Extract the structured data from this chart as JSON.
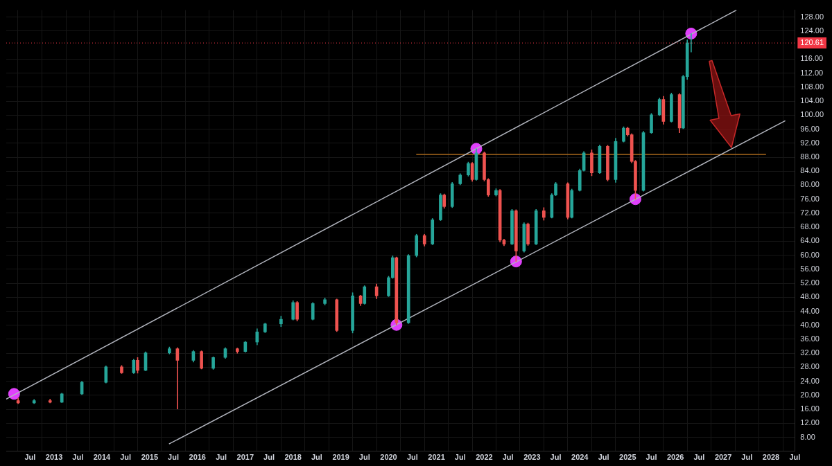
{
  "chart_data": {
    "type": "candlestick",
    "x": [
      "2012-04",
      "2012-08",
      "2012-12",
      "2013-03",
      "2013-08",
      "2014-02",
      "2014-06",
      "2014-09",
      "2014-10",
      "2014-12",
      "2015-06",
      "2015-08",
      "2015-12",
      "2016-02",
      "2016-05",
      "2016-08",
      "2016-11",
      "2017-01",
      "2017-04",
      "2017-06",
      "2017-10",
      "2018-01",
      "2018-02",
      "2018-06",
      "2018-09",
      "2018-12",
      "2019-04",
      "2019-06",
      "2019-07",
      "2019-10",
      "2020-01",
      "2020-02",
      "2020-03",
      "2020-06",
      "2020-08",
      "2020-10",
      "2020-12",
      "2021-02",
      "2021-03",
      "2021-05",
      "2021-07",
      "2021-09",
      "2021-10",
      "2021-11",
      "2022-01",
      "2022-02",
      "2022-04",
      "2022-05",
      "2022-06",
      "2022-08",
      "2022-09",
      "2022-11",
      "2022-12",
      "2023-02",
      "2023-04",
      "2023-06",
      "2023-07",
      "2023-10",
      "2023-11",
      "2024-01",
      "2024-02",
      "2024-04",
      "2024-06",
      "2024-08",
      "2024-10",
      "2024-12",
      "2025-01",
      "2025-02",
      "2025-03",
      "2025-05",
      "2025-07",
      "2025-09",
      "2025-10",
      "2025-12",
      "2026-02",
      "2026-03",
      "2026-04",
      "2026-05"
    ],
    "ohlc": [
      [
        18.5,
        19.2,
        17.6,
        17.8
      ],
      [
        17.8,
        18.8,
        17.6,
        18.5
      ],
      [
        18.5,
        18.9,
        17.8,
        18.0
      ],
      [
        18.0,
        20.6,
        17.9,
        20.4
      ],
      [
        20.4,
        24.0,
        20.2,
        23.7
      ],
      [
        23.7,
        28.4,
        23.5,
        28.1
      ],
      [
        28.1,
        28.5,
        26.2,
        26.4
      ],
      [
        26.4,
        30.3,
        26.2,
        30.0
      ],
      [
        30.0,
        30.8,
        26.3,
        27.1
      ],
      [
        27.1,
        32.4,
        27.0,
        32.1
      ],
      [
        32.1,
        33.8,
        31.8,
        33.3
      ],
      [
        33.3,
        33.6,
        16.1,
        30.0
      ],
      [
        30.0,
        32.8,
        29.5,
        32.5
      ],
      [
        32.5,
        32.7,
        27.5,
        27.7
      ],
      [
        27.7,
        31.0,
        27.4,
        30.8
      ],
      [
        30.8,
        33.6,
        30.5,
        33.3
      ],
      [
        33.3,
        33.5,
        32.0,
        32.5
      ],
      [
        32.5,
        35.4,
        32.3,
        35.2
      ],
      [
        35.2,
        39.0,
        34.4,
        38.1
      ],
      [
        38.1,
        40.6,
        37.9,
        40.4
      ],
      [
        40.4,
        42.6,
        39.6,
        41.7
      ],
      [
        41.7,
        47.0,
        41.5,
        46.5
      ],
      [
        46.5,
        46.8,
        41.2,
        41.7
      ],
      [
        41.7,
        46.5,
        41.5,
        46.2
      ],
      [
        46.2,
        47.8,
        45.8,
        47.3
      ],
      [
        47.3,
        47.5,
        38.2,
        38.5
      ],
      [
        38.5,
        49.3,
        37.8,
        48.4
      ],
      [
        48.4,
        48.6,
        45.6,
        46.2
      ],
      [
        46.2,
        51.3,
        46.0,
        51.0
      ],
      [
        51.0,
        51.8,
        47.6,
        48.4
      ],
      [
        48.4,
        54.0,
        48.2,
        53.6
      ],
      [
        53.6,
        59.8,
        53.4,
        59.3
      ],
      [
        59.3,
        59.5,
        40.1,
        40.7
      ],
      [
        40.7,
        60.2,
        40.5,
        59.9
      ],
      [
        59.9,
        66.0,
        59.5,
        65.6
      ],
      [
        65.6,
        66.0,
        62.6,
        63.2
      ],
      [
        63.2,
        70.5,
        63.0,
        70.1
      ],
      [
        70.1,
        77.6,
        69.9,
        77.2
      ],
      [
        77.2,
        77.5,
        73.4,
        73.9
      ],
      [
        73.9,
        80.8,
        73.6,
        80.4
      ],
      [
        80.4,
        83.3,
        80.1,
        82.9
      ],
      [
        82.9,
        86.6,
        82.6,
        86.2
      ],
      [
        86.2,
        86.5,
        81.1,
        81.6
      ],
      [
        81.6,
        90.4,
        81.4,
        89.2
      ],
      [
        89.2,
        89.5,
        81.2,
        81.6
      ],
      [
        81.6,
        81.9,
        76.8,
        77.2
      ],
      [
        77.2,
        79.0,
        76.9,
        78.5
      ],
      [
        78.5,
        78.8,
        63.8,
        64.3
      ],
      [
        64.3,
        64.6,
        62.7,
        63.2
      ],
      [
        63.2,
        73.1,
        63.0,
        72.7
      ],
      [
        72.7,
        73.0,
        58.2,
        61.2
      ],
      [
        61.2,
        69.3,
        60.9,
        68.9
      ],
      [
        68.9,
        69.2,
        62.8,
        63.2
      ],
      [
        63.2,
        73.1,
        63.0,
        72.7
      ],
      [
        72.7,
        73.6,
        70.0,
        70.8
      ],
      [
        70.8,
        77.6,
        70.6,
        77.2
      ],
      [
        77.2,
        80.8,
        77.0,
        80.4
      ],
      [
        80.4,
        80.7,
        70.3,
        70.8
      ],
      [
        70.8,
        78.9,
        70.6,
        78.5
      ],
      [
        78.5,
        84.6,
        78.3,
        84.2
      ],
      [
        84.2,
        89.6,
        84.0,
        89.2
      ],
      [
        89.2,
        90.1,
        82.7,
        83.5
      ],
      [
        83.5,
        91.5,
        83.3,
        91.1
      ],
      [
        91.1,
        91.4,
        81.2,
        81.6
      ],
      [
        81.6,
        93.4,
        80.8,
        92.5
      ],
      [
        92.5,
        96.7,
        92.3,
        96.3
      ],
      [
        96.3,
        96.6,
        94.0,
        94.4
      ],
      [
        94.4,
        94.7,
        86.4,
        86.8
      ],
      [
        86.8,
        87.1,
        76.0,
        78.5
      ],
      [
        78.5,
        95.4,
        78.3,
        95.0
      ],
      [
        95.0,
        100.5,
        94.8,
        100.1
      ],
      [
        100.1,
        104.9,
        99.9,
        104.5
      ],
      [
        104.5,
        105.4,
        97.4,
        98.2
      ],
      [
        98.2,
        106.3,
        98.0,
        105.9
      ],
      [
        105.9,
        106.2,
        95.0,
        96.3
      ],
      [
        96.3,
        111.4,
        96.1,
        111.0
      ],
      [
        111.0,
        121.5,
        110.2,
        120.6
      ],
      [
        120.6,
        123.3,
        118.0,
        120.61
      ]
    ],
    "colors": [
      "#ef5350",
      "#26a69a",
      "#ef5350",
      "#26a69a",
      "#26a69a",
      "#26a69a",
      "#ef5350",
      "#26a69a",
      "#ef5350",
      "#26a69a",
      "#26a69a",
      "#ef5350",
      "#26a69a",
      "#ef5350",
      "#26a69a",
      "#26a69a",
      "#ef5350",
      "#26a69a",
      "#26a69a",
      "#26a69a",
      "#26a69a",
      "#26a69a",
      "#ef5350",
      "#26a69a",
      "#26a69a",
      "#ef5350",
      "#26a69a",
      "#ef5350",
      "#26a69a",
      "#ef5350",
      "#26a69a",
      "#26a69a",
      "#ef5350",
      "#26a69a",
      "#26a69a",
      "#ef5350",
      "#26a69a",
      "#26a69a",
      "#ef5350",
      "#26a69a",
      "#26a69a",
      "#26a69a",
      "#ef5350",
      "#26a69a",
      "#ef5350",
      "#ef5350",
      "#26a69a",
      "#ef5350",
      "#ef5350",
      "#26a69a",
      "#ef5350",
      "#26a69a",
      "#ef5350",
      "#26a69a",
      "#ef5350",
      "#26a69a",
      "#26a69a",
      "#ef5350",
      "#26a69a",
      "#26a69a",
      "#26a69a",
      "#ef5350",
      "#26a69a",
      "#ef5350",
      "#26a69a",
      "#26a69a",
      "#ef5350",
      "#ef5350",
      "#ef5350",
      "#26a69a",
      "#26a69a",
      "#26a69a",
      "#ef5350",
      "#26a69a",
      "#ef5350",
      "#26a69a",
      "#26a69a",
      "#26a69a"
    ],
    "series": [
      {
        "type": "line",
        "color": "#b2b5be",
        "x": [
          "2012-01",
          "2027-04-12"
        ],
        "values": [
          18.9,
          130.0
        ]
      },
      {
        "type": "line",
        "color": "#b2b5be",
        "x": [
          "2015-05-29",
          "2028-04-19"
        ],
        "values": [
          6.1,
          98.4
        ]
      },
      {
        "type": "line",
        "color": "#a8691c",
        "x": [
          "2020-07-30",
          "2027-11-24"
        ],
        "values": [
          88.8,
          88.8
        ]
      },
      {
        "type": "scatter",
        "color": "#e040fb",
        "marker": "circle",
        "x": [
          "2012-03",
          "2020-03",
          "2021-11",
          "2022-09",
          "2025-03",
          "2026-05"
        ],
        "values": [
          20.4,
          40.1,
          90.4,
          58.2,
          76.0,
          123.3
        ]
      }
    ],
    "ref_lines": [
      {
        "axis": "y",
        "value": 120.61,
        "label": "120.61",
        "color": "#f23645",
        "line_style": "dotted"
      }
    ],
    "xlim": [
      "2012-01",
      "2028-07"
    ],
    "xticks": [
      {
        "value": "2012-07",
        "label": "Jul"
      },
      {
        "value": "2013-01",
        "label": "2013"
      },
      {
        "value": "2013-07",
        "label": "Jul"
      },
      {
        "value": "2014-01",
        "label": "2014"
      },
      {
        "value": "2014-07",
        "label": "Jul"
      },
      {
        "value": "2015-01",
        "label": "2015"
      },
      {
        "value": "2015-07",
        "label": "Jul"
      },
      {
        "value": "2016-01",
        "label": "2016"
      },
      {
        "value": "2016-07",
        "label": "Jul"
      },
      {
        "value": "2017-01",
        "label": "2017"
      },
      {
        "value": "2017-07",
        "label": "Jul"
      },
      {
        "value": "2018-01",
        "label": "2018"
      },
      {
        "value": "2018-07",
        "label": "Jul"
      },
      {
        "value": "2019-01",
        "label": "2019"
      },
      {
        "value": "2019-07",
        "label": "Jul"
      },
      {
        "value": "2020-01",
        "label": "2020"
      },
      {
        "value": "2020-07",
        "label": "Jul"
      },
      {
        "value": "2021-01",
        "label": "2021"
      },
      {
        "value": "2021-07",
        "label": "Jul"
      },
      {
        "value": "2022-01",
        "label": "2022"
      },
      {
        "value": "2022-07",
        "label": "Jul"
      },
      {
        "value": "2023-01",
        "label": "2023"
      },
      {
        "value": "2023-07",
        "label": "Jul"
      },
      {
        "value": "2024-01",
        "label": "2024"
      },
      {
        "value": "2024-07",
        "label": "Jul"
      },
      {
        "value": "2025-01",
        "label": "2025"
      },
      {
        "value": "2025-07",
        "label": "Jul"
      },
      {
        "value": "2026-01",
        "label": "2026"
      },
      {
        "value": "2026-07",
        "label": "Jul"
      },
      {
        "value": "2027-01",
        "label": "2027"
      },
      {
        "value": "2027-07",
        "label": "Jul"
      },
      {
        "value": "2028-01",
        "label": "2028"
      },
      {
        "value": "2028-07",
        "label": "Jul"
      }
    ],
    "ylim": [
      4,
      130
    ],
    "yticks": [
      {
        "value": 8,
        "label": "8.00"
      },
      {
        "value": 12,
        "label": "12.00"
      },
      {
        "value": 16,
        "label": "16.00"
      },
      {
        "value": 20,
        "label": "20.00"
      },
      {
        "value": 24,
        "label": "24.00"
      },
      {
        "value": 28,
        "label": "28.00"
      },
      {
        "value": 32,
        "label": "32.00"
      },
      {
        "value": 36,
        "label": "36.00"
      },
      {
        "value": 40,
        "label": "40.00"
      },
      {
        "value": 44,
        "label": "44.00"
      },
      {
        "value": 48,
        "label": "48.00"
      },
      {
        "value": 52,
        "label": "52.00"
      },
      {
        "value": 56,
        "label": "56.00"
      },
      {
        "value": 60,
        "label": "60.00"
      },
      {
        "value": 64,
        "label": "64.00"
      },
      {
        "value": 68,
        "label": "68.00"
      },
      {
        "value": 72,
        "label": "72.00"
      },
      {
        "value": 76,
        "label": "76.00"
      },
      {
        "value": 80,
        "label": "80.00"
      },
      {
        "value": 84,
        "label": "84.00"
      },
      {
        "value": 88,
        "label": "88.00"
      },
      {
        "value": 92,
        "label": "92.00"
      },
      {
        "value": 96,
        "label": "96.00"
      },
      {
        "value": 100,
        "label": "100.00"
      },
      {
        "value": 104,
        "label": "104.00"
      },
      {
        "value": 108,
        "label": "108.00"
      },
      {
        "value": 112,
        "label": "112.00"
      },
      {
        "value": 116,
        "label": "116.00"
      },
      {
        "value": 124,
        "label": "124.00"
      },
      {
        "value": 128,
        "label": "128.00"
      }
    ],
    "grid": true
  }
}
